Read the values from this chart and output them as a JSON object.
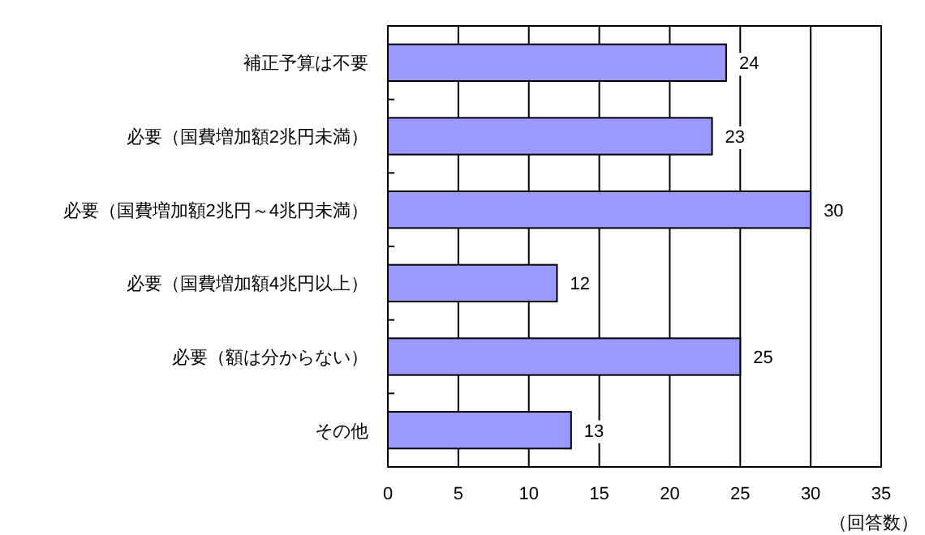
{
  "chart_data": {
    "type": "bar",
    "orientation": "horizontal",
    "categories": [
      "補正予算は不要",
      "必要（国費増加額2兆円未満）",
      "必要（国費増加額2兆円～4兆円未満）",
      "必要（国費増加額4兆円以上）",
      "必要（額は分からない）",
      "その他"
    ],
    "values": [
      24,
      23,
      30,
      12,
      25,
      13
    ],
    "color": "#9999ff",
    "xlim": [
      0,
      35
    ],
    "xticks": [
      0,
      5,
      10,
      15,
      20,
      25,
      30,
      35
    ],
    "xlabel": "（回答数）",
    "grid": "x",
    "data_labels": true
  }
}
